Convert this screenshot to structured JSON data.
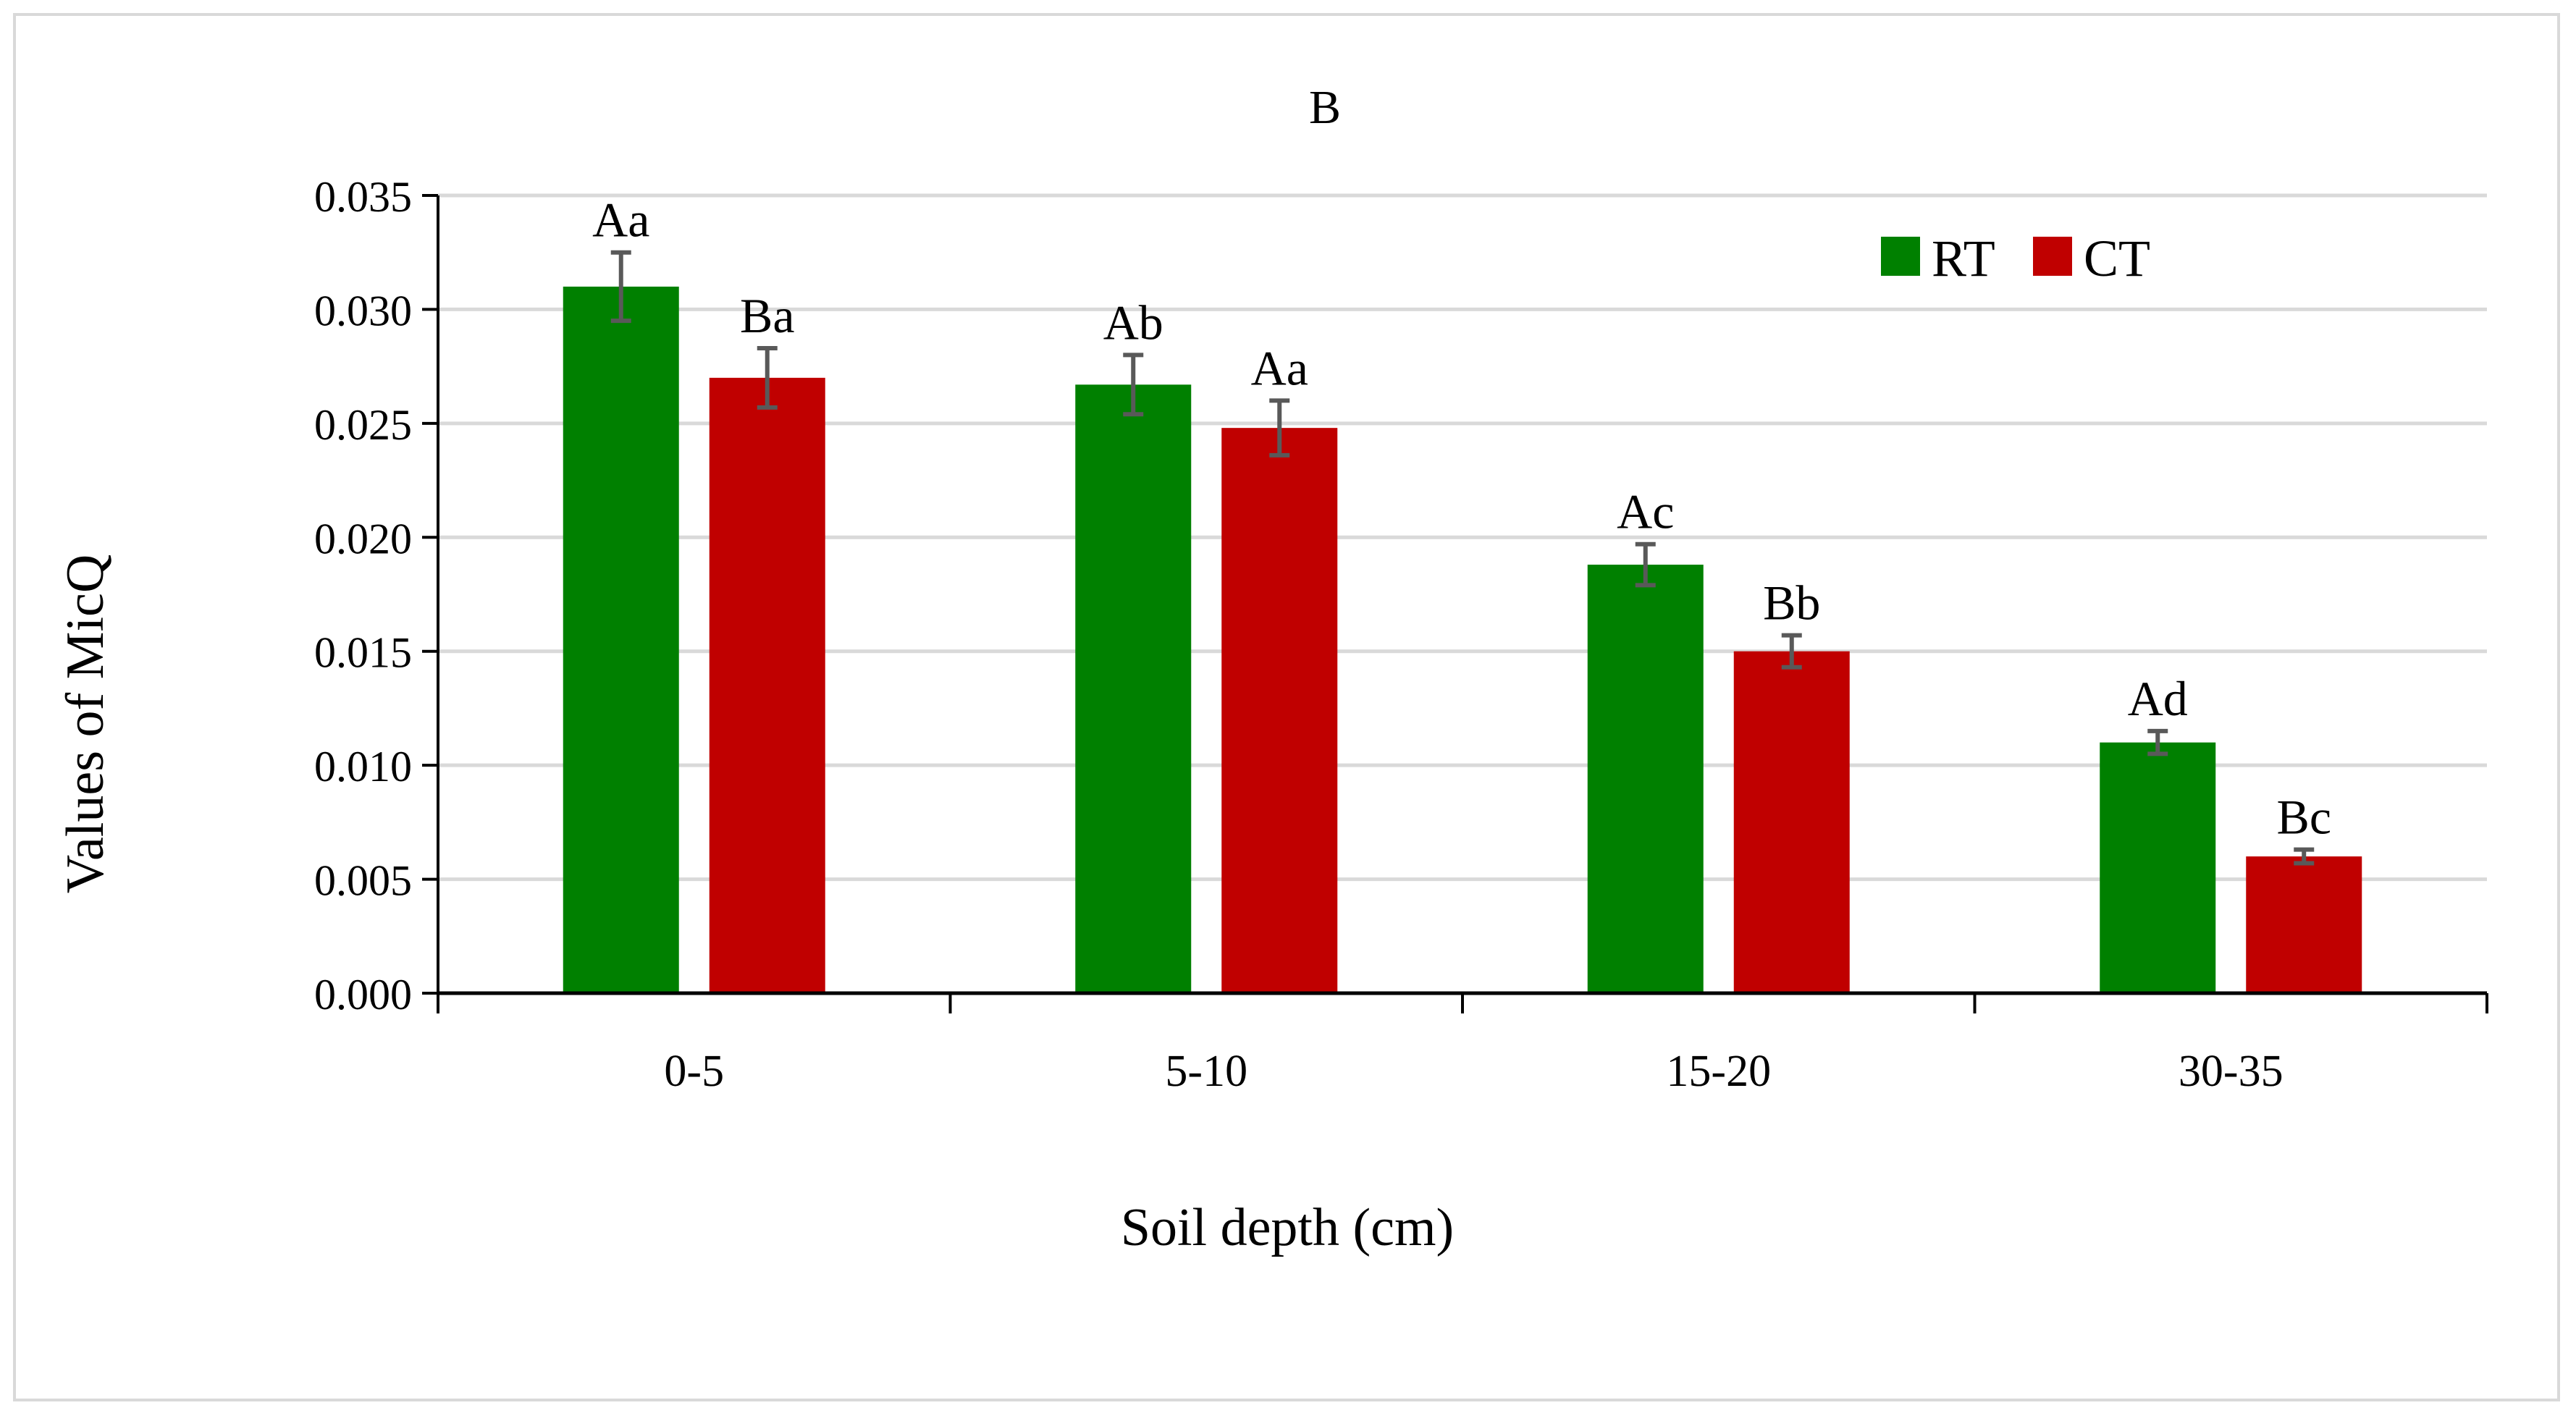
{
  "chart_data": {
    "type": "bar",
    "title": "B",
    "xlabel": "Soil depth (cm)",
    "ylabel": "Values of MicQ",
    "categories": [
      "0-5",
      "5-10",
      "15-20",
      "30-35"
    ],
    "ylim": [
      0,
      0.035
    ],
    "yticks": [
      0.0,
      0.005,
      0.01,
      0.015,
      0.02,
      0.025,
      0.03,
      0.035
    ],
    "ytick_labels": [
      "0.000",
      "0.005",
      "0.010",
      "0.015",
      "0.020",
      "0.025",
      "0.030",
      "0.035"
    ],
    "grid": true,
    "legend_position": "top-right",
    "series": [
      {
        "name": "RT",
        "color": "#008000",
        "values": [
          0.031,
          0.0267,
          0.0188,
          0.011
        ],
        "errors": [
          0.0015,
          0.0013,
          0.0009,
          0.0005
        ],
        "annotations": [
          "Aa",
          "Ab",
          "Ac",
          "Ad"
        ]
      },
      {
        "name": "CT",
        "color": "#c00000",
        "values": [
          0.027,
          0.0248,
          0.015,
          0.006
        ],
        "errors": [
          0.0013,
          0.0012,
          0.0007,
          0.0003
        ],
        "annotations": [
          "Ba",
          "Aa",
          "Bb",
          "Bc"
        ]
      }
    ]
  }
}
